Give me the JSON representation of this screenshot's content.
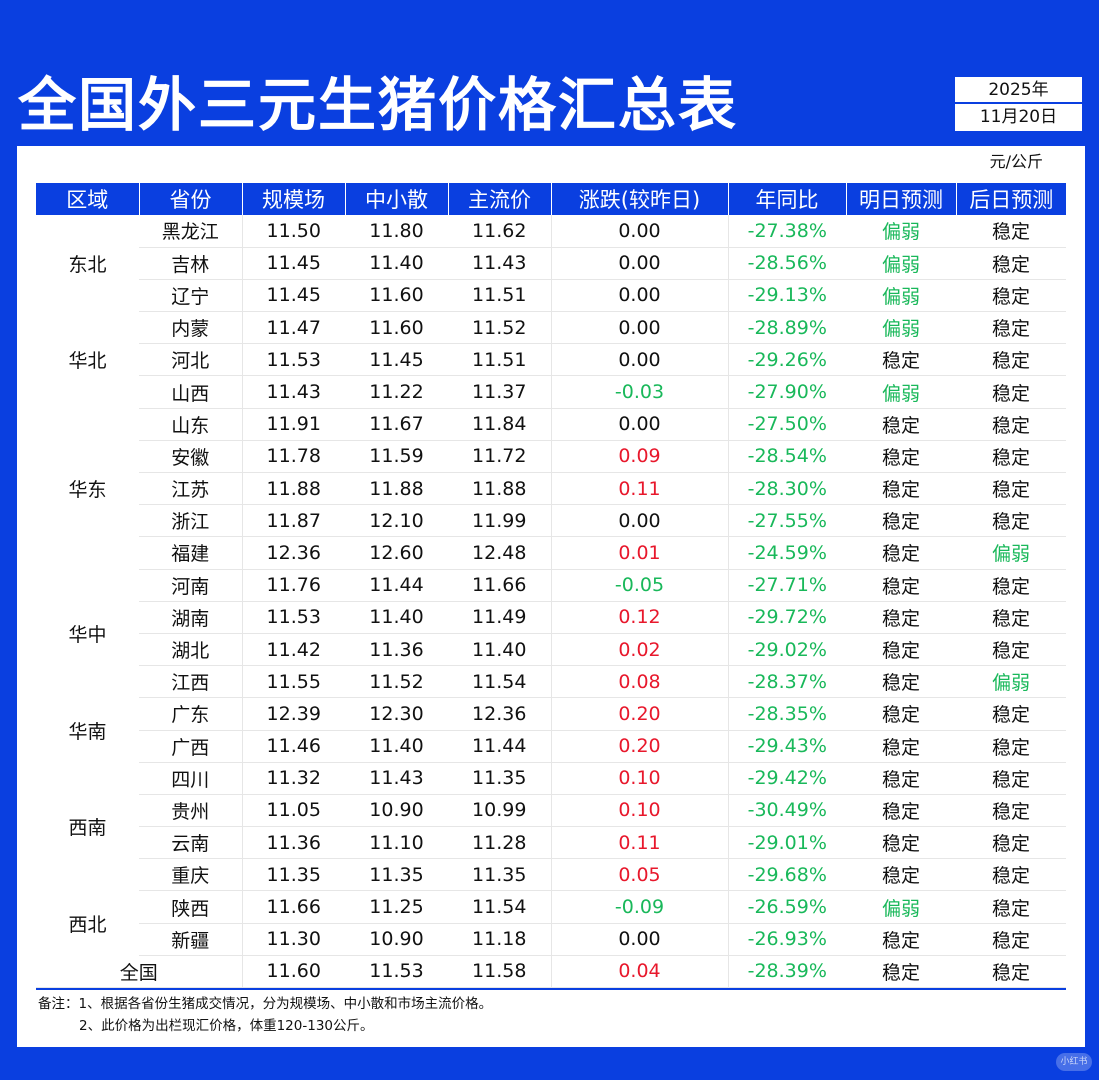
{
  "title": "全国外三元生猪价格汇总表",
  "date": {
    "year": "2025年",
    "day": "11月20日"
  },
  "unit": "元/公斤",
  "headers": [
    "区域",
    "省份",
    "规模场",
    "中小散",
    "主流价",
    "涨跌(较昨日)",
    "年同比",
    "明日预测",
    "后日预测"
  ],
  "regions": [
    {
      "name": "东北",
      "span": 3
    },
    {
      "name": "华北",
      "span": 3
    },
    {
      "name": "华东",
      "span": 5
    },
    {
      "name": "华中",
      "span": 4
    },
    {
      "name": "华南",
      "span": 2
    },
    {
      "name": "西南",
      "span": 4
    },
    {
      "name": "西北",
      "span": 2
    }
  ],
  "rows": [
    {
      "province": "黑龙江",
      "large": "11.50",
      "small": "11.80",
      "main": "11.62",
      "change": "0.00",
      "yoy": "-27.38%",
      "tomorrow": "偏弱",
      "after": "稳定"
    },
    {
      "province": "吉林",
      "large": "11.45",
      "small": "11.40",
      "main": "11.43",
      "change": "0.00",
      "yoy": "-28.56%",
      "tomorrow": "偏弱",
      "after": "稳定"
    },
    {
      "province": "辽宁",
      "large": "11.45",
      "small": "11.60",
      "main": "11.51",
      "change": "0.00",
      "yoy": "-29.13%",
      "tomorrow": "偏弱",
      "after": "稳定"
    },
    {
      "province": "内蒙",
      "large": "11.47",
      "small": "11.60",
      "main": "11.52",
      "change": "0.00",
      "yoy": "-28.89%",
      "tomorrow": "偏弱",
      "after": "稳定"
    },
    {
      "province": "河北",
      "large": "11.53",
      "small": "11.45",
      "main": "11.51",
      "change": "0.00",
      "yoy": "-29.26%",
      "tomorrow": "稳定",
      "after": "稳定"
    },
    {
      "province": "山西",
      "large": "11.43",
      "small": "11.22",
      "main": "11.37",
      "change": "-0.03",
      "yoy": "-27.90%",
      "tomorrow": "偏弱",
      "after": "稳定"
    },
    {
      "province": "山东",
      "large": "11.91",
      "small": "11.67",
      "main": "11.84",
      "change": "0.00",
      "yoy": "-27.50%",
      "tomorrow": "稳定",
      "after": "稳定"
    },
    {
      "province": "安徽",
      "large": "11.78",
      "small": "11.59",
      "main": "11.72",
      "change": "0.09",
      "yoy": "-28.54%",
      "tomorrow": "稳定",
      "after": "稳定"
    },
    {
      "province": "江苏",
      "large": "11.88",
      "small": "11.88",
      "main": "11.88",
      "change": "0.11",
      "yoy": "-28.30%",
      "tomorrow": "稳定",
      "after": "稳定"
    },
    {
      "province": "浙江",
      "large": "11.87",
      "small": "12.10",
      "main": "11.99",
      "change": "0.00",
      "yoy": "-27.55%",
      "tomorrow": "稳定",
      "after": "稳定"
    },
    {
      "province": "福建",
      "large": "12.36",
      "small": "12.60",
      "main": "12.48",
      "change": "0.01",
      "yoy": "-24.59%",
      "tomorrow": "稳定",
      "after": "偏弱"
    },
    {
      "province": "河南",
      "large": "11.76",
      "small": "11.44",
      "main": "11.66",
      "change": "-0.05",
      "yoy": "-27.71%",
      "tomorrow": "稳定",
      "after": "稳定"
    },
    {
      "province": "湖南",
      "large": "11.53",
      "small": "11.40",
      "main": "11.49",
      "change": "0.12",
      "yoy": "-29.72%",
      "tomorrow": "稳定",
      "after": "稳定"
    },
    {
      "province": "湖北",
      "large": "11.42",
      "small": "11.36",
      "main": "11.40",
      "change": "0.02",
      "yoy": "-29.02%",
      "tomorrow": "稳定",
      "after": "稳定"
    },
    {
      "province": "江西",
      "large": "11.55",
      "small": "11.52",
      "main": "11.54",
      "change": "0.08",
      "yoy": "-28.37%",
      "tomorrow": "稳定",
      "after": "偏弱"
    },
    {
      "province": "广东",
      "large": "12.39",
      "small": "12.30",
      "main": "12.36",
      "change": "0.20",
      "yoy": "-28.35%",
      "tomorrow": "稳定",
      "after": "稳定"
    },
    {
      "province": "广西",
      "large": "11.46",
      "small": "11.40",
      "main": "11.44",
      "change": "0.20",
      "yoy": "-29.43%",
      "tomorrow": "稳定",
      "after": "稳定"
    },
    {
      "province": "四川",
      "large": "11.32",
      "small": "11.43",
      "main": "11.35",
      "change": "0.10",
      "yoy": "-29.42%",
      "tomorrow": "稳定",
      "after": "稳定"
    },
    {
      "province": "贵州",
      "large": "11.05",
      "small": "10.90",
      "main": "10.99",
      "change": "0.10",
      "yoy": "-30.49%",
      "tomorrow": "稳定",
      "after": "稳定"
    },
    {
      "province": "云南",
      "large": "11.36",
      "small": "11.10",
      "main": "11.28",
      "change": "0.11",
      "yoy": "-29.01%",
      "tomorrow": "稳定",
      "after": "稳定"
    },
    {
      "province": "重庆",
      "large": "11.35",
      "small": "11.35",
      "main": "11.35",
      "change": "0.05",
      "yoy": "-29.68%",
      "tomorrow": "稳定",
      "after": "稳定"
    },
    {
      "province": "陕西",
      "large": "11.66",
      "small": "11.25",
      "main": "11.54",
      "change": "-0.09",
      "yoy": "-26.59%",
      "tomorrow": "偏弱",
      "after": "稳定"
    },
    {
      "province": "新疆",
      "large": "11.30",
      "small": "10.90",
      "main": "11.18",
      "change": "0.00",
      "yoy": "-26.93%",
      "tomorrow": "稳定",
      "after": "稳定"
    }
  ],
  "national": {
    "label": "全国",
    "large": "11.60",
    "small": "11.53",
    "main": "11.58",
    "change": "0.04",
    "yoy": "-28.39%",
    "tomorrow": "稳定",
    "after": "稳定"
  },
  "notes": [
    "备注：1、根据各省份生猪成交情况，分为规模场、中小散和市场主流价格。",
    "2、此价格为出栏现汇价格，体重120-130公斤。"
  ],
  "watermark": "小红书",
  "colors": {
    "brand_blue": "#0a3fe0",
    "up_red": "#e8182c",
    "down_green": "#19b85a"
  }
}
